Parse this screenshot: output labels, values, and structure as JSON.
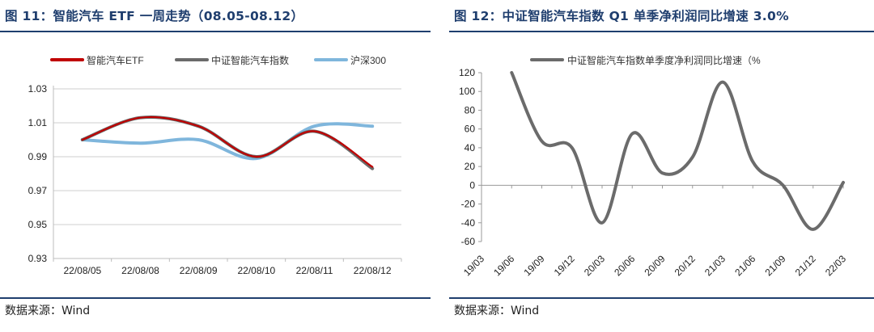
{
  "charts": [
    {
      "title": "图 11：智能汽车 ETF 一周走势（08.05-08.12）",
      "source": "数据来源：Wind",
      "chart_data": {
        "type": "line",
        "categories": [
          "22/08/05",
          "22/08/08",
          "22/08/09",
          "22/08/10",
          "22/08/11",
          "22/08/12"
        ],
        "series": [
          {
            "name": "智能汽车ETF",
            "color": "#c00000",
            "values": [
              1.0,
              1.013,
              1.008,
              0.99,
              1.005,
              0.984
            ]
          },
          {
            "name": "中证智能汽车指数",
            "color": "#6b6b6b",
            "values": [
              1.0,
              1.013,
              1.008,
              0.99,
              1.005,
              0.983
            ]
          },
          {
            "name": "沪深300",
            "color": "#7fb6dc",
            "values": [
              1.0,
              0.998,
              1.0,
              0.989,
              1.008,
              1.008
            ]
          }
        ],
        "yticks": [
          "1.03",
          "1.01",
          "0.99",
          "0.97",
          "0.95",
          "0.93"
        ],
        "ylim": [
          0.93,
          1.03
        ],
        "legend": "top",
        "grid": true
      }
    },
    {
      "title": "图 12：中证智能汽车指数 Q1 单季净利润同比增速 3.0%",
      "source": "数据来源：Wind",
      "chart_data": {
        "type": "line",
        "categories": [
          "19/03",
          "19/06",
          "19/09",
          "19/12",
          "20/03",
          "20/06",
          "20/09",
          "20/12",
          "21/03",
          "21/06",
          "21/09",
          "21/12",
          "22/03"
        ],
        "series": [
          {
            "name": "中证智能汽车指数单季度净利润同比增速（%",
            "color": "#6b6b6b",
            "values": [
              null,
              120,
              47,
              40,
              -40,
              55,
              13,
              30,
              110,
              25,
              0,
              -47,
              3
            ]
          }
        ],
        "yticks": [
          "120",
          "100",
          "80",
          "60",
          "40",
          "20",
          "0",
          "-20",
          "-40",
          "-60"
        ],
        "ylim": [
          -60,
          120
        ],
        "legend": "top",
        "grid": false
      }
    }
  ]
}
